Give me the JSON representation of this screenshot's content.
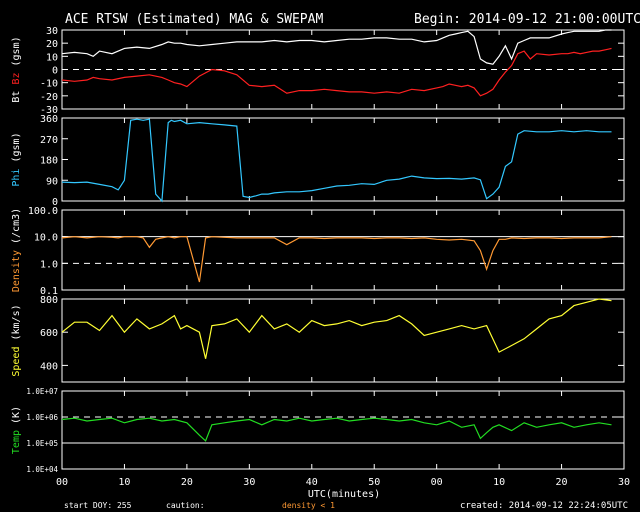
{
  "header": {
    "title": "ACE RTSW (Estimated) MAG & SWEPAM",
    "begin": "Begin: 2014-09-12 21:00:00UTC"
  },
  "footer": {
    "start_doy": "start DOY: 255",
    "caution": "caution:",
    "density_note": "density < 1",
    "created": "created: 2014-09-12 22:24:05UTC"
  },
  "colors": {
    "bt": "#ffffff",
    "bz": "#ff2020",
    "phi": "#33c8ff",
    "density": "#ff9933",
    "speed": "#ffff33",
    "temp": "#22dd22",
    "axes": "#ffffff"
  },
  "chart_data": [
    {
      "type": "line",
      "id": "mag",
      "ylabel_parts": [
        "Bt",
        "Bz",
        "(gsm)"
      ],
      "ylim": [
        -30,
        30
      ],
      "yticks": [
        "30",
        "20",
        "10",
        "0",
        "-10",
        "-20",
        "-30"
      ],
      "yticks_values": [
        30,
        20,
        10,
        0,
        -10,
        -20,
        -30
      ],
      "dashed_line": 0,
      "series": [
        {
          "name": "Bt",
          "color": "#ffffff",
          "x": [
            0,
            2,
            4,
            5,
            6,
            8,
            10,
            12,
            14,
            16,
            17,
            18,
            19,
            20,
            22,
            24,
            26,
            28,
            30,
            32,
            34,
            36,
            38,
            40,
            42,
            44,
            46,
            48,
            50,
            52,
            54,
            56,
            58,
            60,
            61,
            62,
            63,
            64,
            65,
            66,
            67,
            68,
            69,
            70,
            71,
            72,
            73,
            74,
            75,
            76,
            78,
            80,
            81,
            82,
            83,
            84,
            85,
            86,
            87,
            88
          ],
          "y": [
            12,
            13,
            12,
            10,
            14,
            12,
            16,
            17,
            16,
            19,
            21,
            20,
            20,
            19,
            18,
            19,
            20,
            21,
            21,
            21,
            22,
            21,
            22,
            22,
            21,
            22,
            23,
            23,
            24,
            24,
            23,
            23,
            21,
            22,
            24,
            26,
            27,
            28,
            29,
            25,
            8,
            5,
            4,
            10,
            18,
            8,
            20,
            22,
            24,
            24,
            24,
            27,
            28,
            29,
            29,
            29,
            29,
            29,
            30,
            30
          ]
        },
        {
          "name": "Bz",
          "color": "#ff2020",
          "x": [
            0,
            2,
            4,
            5,
            6,
            8,
            10,
            12,
            14,
            16,
            17,
            18,
            19,
            20,
            22,
            24,
            26,
            28,
            30,
            32,
            34,
            36,
            38,
            40,
            42,
            44,
            46,
            48,
            50,
            52,
            54,
            56,
            58,
            60,
            61,
            62,
            63,
            64,
            65,
            66,
            67,
            68,
            69,
            70,
            71,
            72,
            73,
            74,
            75,
            76,
            78,
            80,
            81,
            82,
            83,
            84,
            85,
            86,
            87,
            88
          ],
          "y": [
            -8,
            -9,
            -8,
            -6,
            -7,
            -8,
            -6,
            -5,
            -4,
            -6,
            -8,
            -10,
            -11,
            -13,
            -5,
            0,
            -1,
            -4,
            -12,
            -13,
            -12,
            -18,
            -16,
            -16,
            -15,
            -16,
            -17,
            -17,
            -18,
            -17,
            -18,
            -15,
            -16,
            -14,
            -13,
            -11,
            -12,
            -13,
            -12,
            -14,
            -20,
            -18,
            -15,
            -8,
            -2,
            3,
            12,
            14,
            8,
            12,
            11,
            12,
            12,
            13,
            12,
            13,
            14,
            14,
            15,
            16
          ]
        }
      ]
    },
    {
      "type": "line",
      "id": "phi",
      "ylabel": "Phi (gsm)",
      "ylim": [
        0,
        360
      ],
      "yticks": [
        "360",
        "270",
        "180",
        "90",
        "0"
      ],
      "yticks_values": [
        360,
        270,
        180,
        90,
        0
      ],
      "series": [
        {
          "name": "Phi",
          "color": "#33c8ff",
          "x": [
            0,
            2,
            4,
            6,
            8,
            9,
            10,
            11,
            12,
            13,
            14,
            15,
            16,
            17,
            17.5,
            18,
            19,
            20,
            22,
            24,
            26,
            28,
            29,
            30,
            31,
            32,
            33,
            34,
            36,
            38,
            40,
            42,
            44,
            46,
            48,
            50,
            52,
            54,
            56,
            58,
            60,
            62,
            64,
            66,
            67,
            68,
            69,
            70,
            71,
            72,
            73,
            74,
            76,
            78,
            80,
            82,
            84,
            86,
            88
          ],
          "y": [
            82,
            80,
            82,
            72,
            62,
            48,
            90,
            350,
            355,
            350,
            355,
            30,
            0,
            340,
            350,
            345,
            350,
            335,
            340,
            335,
            330,
            325,
            20,
            15,
            22,
            30,
            30,
            35,
            40,
            40,
            45,
            55,
            65,
            68,
            75,
            72,
            90,
            95,
            108,
            100,
            97,
            98,
            95,
            100,
            92,
            10,
            30,
            60,
            150,
            170,
            290,
            305,
            300,
            300,
            305,
            300,
            305,
            300,
            300
          ]
        }
      ]
    },
    {
      "type": "line",
      "id": "density",
      "ylabel": "Density (/cm3)",
      "yscale": "log",
      "ylim": [
        0.1,
        100
      ],
      "yticks": [
        "100.0",
        "10.0",
        "1.0",
        "0.1"
      ],
      "yticks_values": [
        100,
        10,
        1,
        0.1
      ],
      "solid_line": 10,
      "dashed_line": 1,
      "series": [
        {
          "name": "Density",
          "color": "#ff9933",
          "x": [
            0,
            2,
            4,
            6,
            8,
            9,
            10,
            11,
            12,
            13,
            14,
            15,
            16,
            17,
            18,
            19,
            20,
            22,
            23,
            24,
            26,
            28,
            30,
            32,
            34,
            36,
            38,
            40,
            42,
            44,
            46,
            48,
            50,
            52,
            54,
            56,
            58,
            60,
            62,
            64,
            66,
            67,
            68,
            69,
            70,
            71,
            72,
            74,
            76,
            78,
            80,
            82,
            84,
            86,
            88
          ],
          "y": [
            9,
            10,
            9,
            10,
            9.5,
            9,
            10,
            10,
            10,
            9,
            4,
            8,
            9,
            10,
            9,
            10,
            10,
            0.2,
            9,
            10,
            9.5,
            9,
            9,
            9,
            9,
            5,
            9,
            9,
            8.5,
            9,
            9,
            9,
            8.5,
            9,
            9,
            8.5,
            9,
            8,
            7.5,
            8,
            7,
            3,
            0.6,
            3,
            8,
            8,
            9,
            8.5,
            9,
            9,
            8.5,
            9,
            9,
            9,
            10
          ]
        }
      ]
    },
    {
      "type": "line",
      "id": "speed",
      "ylabel": "Speed (km/s)",
      "ylim": [
        300,
        800
      ],
      "yticks": [
        "800",
        "600",
        "400"
      ],
      "yticks_values": [
        800,
        600,
        400
      ],
      "series": [
        {
          "name": "Speed",
          "color": "#ffff33",
          "x": [
            0,
            2,
            4,
            6,
            8,
            10,
            12,
            14,
            16,
            18,
            19,
            20,
            22,
            23,
            24,
            26,
            28,
            30,
            32,
            34,
            36,
            38,
            40,
            42,
            44,
            46,
            48,
            50,
            52,
            54,
            56,
            58,
            60,
            62,
            64,
            66,
            68,
            70,
            72,
            74,
            76,
            78,
            80,
            82,
            84,
            86,
            88
          ],
          "y": [
            600,
            660,
            660,
            610,
            700,
            600,
            680,
            620,
            650,
            700,
            620,
            640,
            600,
            440,
            640,
            650,
            680,
            600,
            700,
            620,
            650,
            600,
            670,
            640,
            650,
            670,
            640,
            660,
            670,
            700,
            650,
            580,
            600,
            620,
            640,
            620,
            640,
            480,
            520,
            560,
            620,
            680,
            700,
            760,
            780,
            800,
            790
          ]
        }
      ]
    },
    {
      "type": "line",
      "id": "temp",
      "ylabel": "Temp (K)",
      "yscale": "log",
      "ylim": [
        10000,
        10000000
      ],
      "yticks": [
        "1.0E+07",
        "1.0E+06",
        "1.0E+05",
        "1.0E+04"
      ],
      "yticks_values": [
        10000000,
        1000000,
        100000,
        10000
      ],
      "dashed_line": 1000000,
      "solid_line": 100000,
      "series": [
        {
          "name": "Temp",
          "color": "#22dd22",
          "x": [
            0,
            2,
            4,
            6,
            8,
            10,
            12,
            14,
            16,
            18,
            20,
            22,
            23,
            24,
            26,
            28,
            30,
            32,
            34,
            36,
            38,
            40,
            42,
            44,
            46,
            48,
            50,
            52,
            54,
            56,
            58,
            60,
            62,
            64,
            66,
            67,
            68,
            69,
            70,
            72,
            74,
            76,
            78,
            80,
            82,
            84,
            86,
            88
          ],
          "y": [
            800000,
            900000,
            700000,
            800000,
            900000,
            600000,
            800000,
            900000,
            700000,
            800000,
            600000,
            200000,
            120000,
            500000,
            600000,
            700000,
            800000,
            500000,
            800000,
            700000,
            900000,
            700000,
            800000,
            900000,
            700000,
            800000,
            900000,
            800000,
            700000,
            800000,
            600000,
            500000,
            700000,
            400000,
            500000,
            150000,
            250000,
            400000,
            500000,
            300000,
            600000,
            400000,
            500000,
            600000,
            400000,
            500000,
            600000,
            500000
          ]
        }
      ]
    }
  ],
  "xaxis": {
    "label": "UTC(minutes)",
    "xlim": [
      0,
      90
    ],
    "ticks": [
      "00",
      "10",
      "20",
      "30",
      "40",
      "50",
      "00",
      "10",
      "20",
      "30"
    ],
    "tick_values": [
      0,
      10,
      20,
      30,
      40,
      50,
      60,
      70,
      80,
      90
    ]
  }
}
